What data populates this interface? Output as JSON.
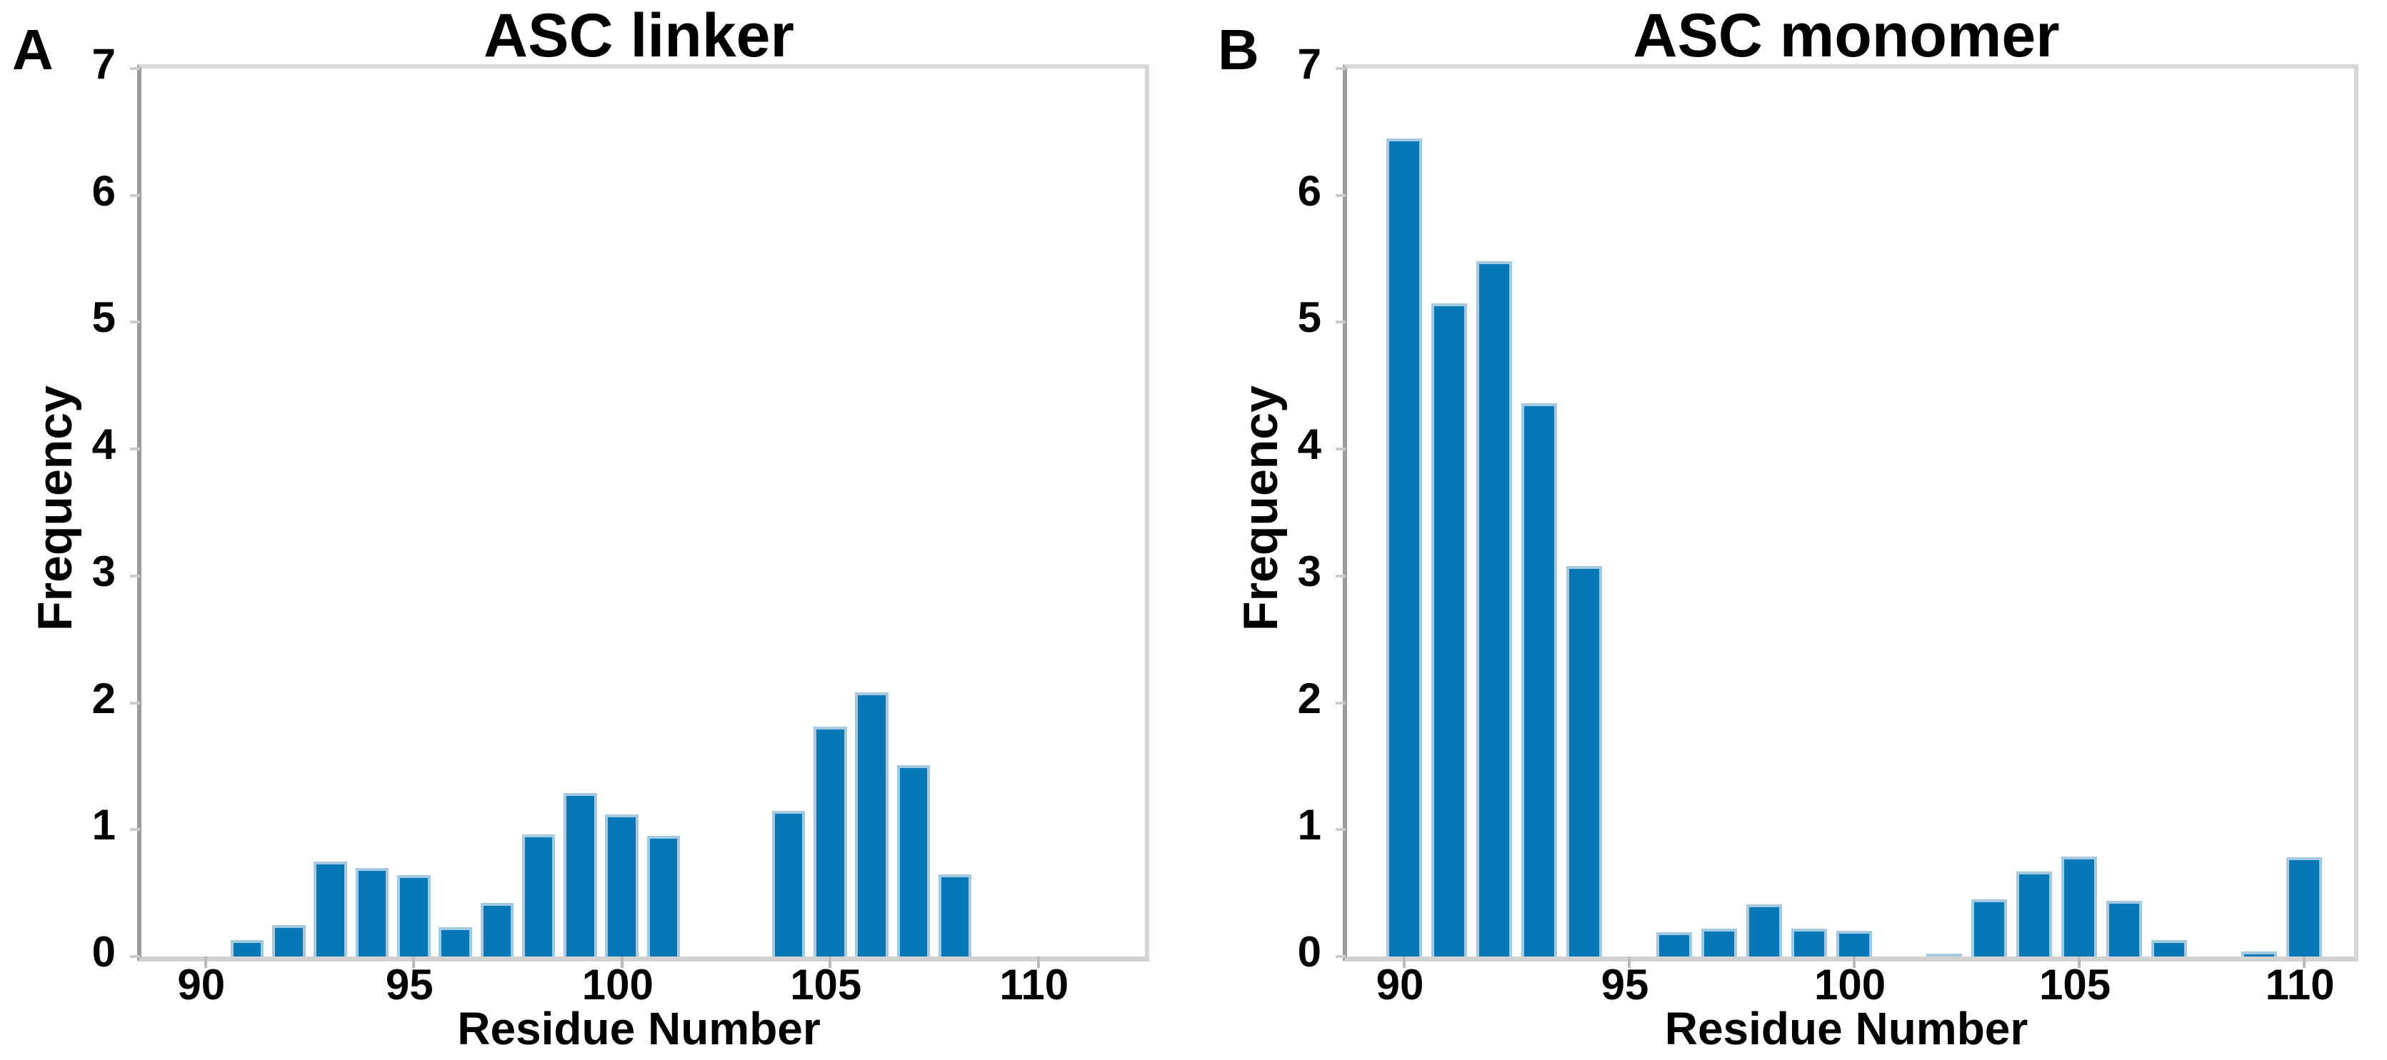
{
  "figure": {
    "background": "#ffffff",
    "text_color": "#000000",
    "spine_color_left": "#9c9c9c",
    "spine_color_other": "#d5d5d5"
  },
  "chart_data": [
    {
      "type": "bar",
      "panel_label": "A",
      "title": "ASC linker",
      "xlabel": "Residue Number",
      "ylabel": "Frequency",
      "xlim": [
        88.46,
        112.56
      ],
      "ylim": [
        0,
        7
      ],
      "xticks": [
        90,
        95,
        100,
        105,
        110
      ],
      "yticks": [
        0,
        1,
        2,
        3,
        4,
        5,
        6,
        7
      ],
      "grid": false,
      "legend": null,
      "bar_width": 0.8,
      "bar_color": "#0678b8",
      "bar_edge_color": "#a6c9e2",
      "x": [
        91,
        92,
        93,
        94,
        95,
        96,
        97,
        98,
        99,
        100,
        101,
        104,
        105,
        106,
        107,
        108
      ],
      "values": [
        0.13,
        0.25,
        0.75,
        0.7,
        0.64,
        0.23,
        0.42,
        0.96,
        1.29,
        1.12,
        0.95,
        1.15,
        1.81,
        2.08,
        1.51,
        0.65
      ]
    },
    {
      "type": "bar",
      "panel_label": "B",
      "title": "ASC monomer",
      "xlabel": "Residue Number",
      "ylabel": "Frequency",
      "xlim": [
        88.73,
        111.11
      ],
      "ylim": [
        0,
        7
      ],
      "xticks": [
        90,
        95,
        100,
        105,
        110
      ],
      "yticks": [
        0,
        1,
        2,
        3,
        4,
        5,
        6,
        7
      ],
      "grid": false,
      "legend": null,
      "bar_width": 0.8,
      "bar_color": "#0678b8",
      "bar_edge_color": "#a6c9e2",
      "x": [
        90,
        91,
        92,
        93,
        94,
        96,
        97,
        98,
        99,
        100,
        102,
        103,
        104,
        105,
        106,
        107,
        109,
        110
      ],
      "values": [
        6.45,
        5.15,
        5.48,
        4.36,
        3.08,
        0.19,
        0.22,
        0.41,
        0.22,
        0.2,
        0.02,
        0.45,
        0.67,
        0.79,
        0.44,
        0.13,
        0.04,
        0.78
      ]
    }
  ]
}
